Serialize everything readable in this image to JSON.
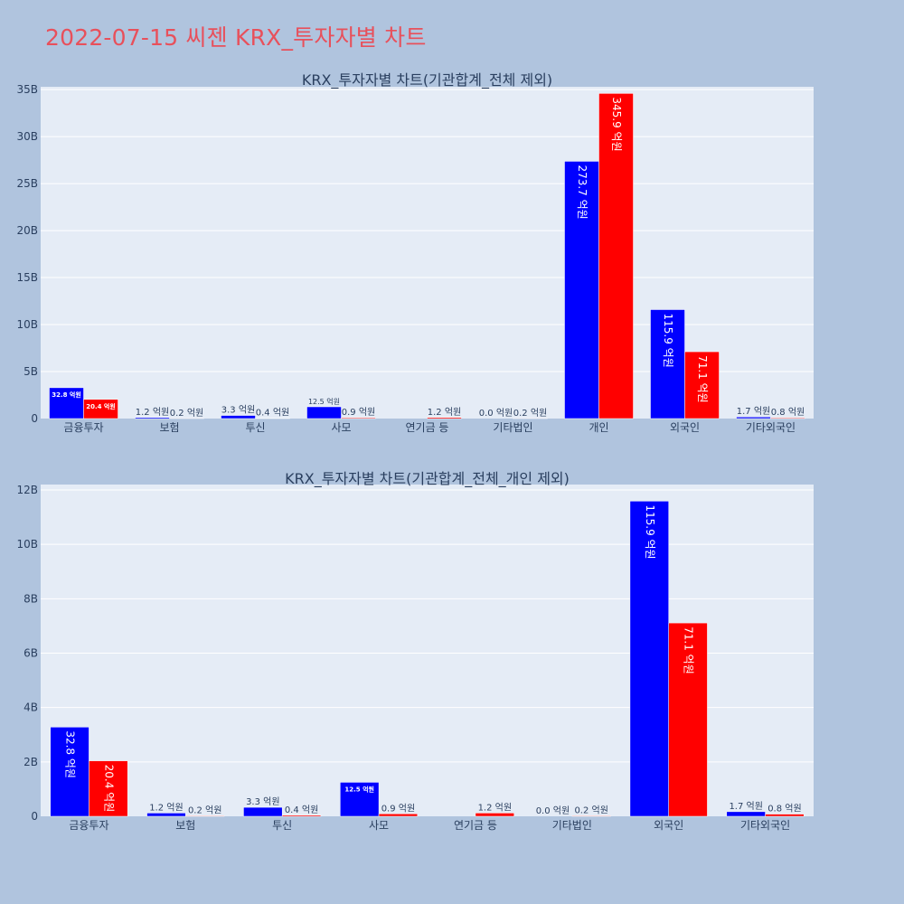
{
  "page": {
    "title": "2022-07-15 씨젠 KRX_투자자별 차트"
  },
  "colors": {
    "background": "#b0c4de",
    "plot_bg": "#e5ecf6",
    "buy": "#0000ff",
    "sell": "#ff0000",
    "title": "#e8505b",
    "text": "#2a3f5f"
  },
  "chart_data": [
    {
      "type": "bar",
      "title": "KRX_투자자별 차트(기관합계_전체 제외)",
      "categories": [
        "금융투자",
        "보험",
        "투신",
        "사모",
        "연기금 등",
        "기타법인",
        "개인",
        "외국인",
        "기타외국인"
      ],
      "series": [
        {
          "color": "#0000ff",
          "values": [
            3280000000,
            120000000,
            330000000,
            1250000000,
            0,
            0,
            27370000000,
            11590000000,
            170000000
          ],
          "labels": [
            "32.8 억원",
            "1.2 억원",
            "3.3 억원",
            "12.5 억원",
            "",
            "0.0 억원",
            "273.7 억원",
            "115.9 억원",
            "1.7 억원"
          ]
        },
        {
          "color": "#ff0000",
          "values": [
            2040000000,
            20000000,
            40000000,
            90000000,
            120000000,
            20000000,
            34590000000,
            7110000000,
            80000000
          ],
          "labels": [
            "20.4 억원",
            "0.2 억원",
            "0.4 억원",
            "0.9 억원",
            "1.2 억원",
            "0.2 억원",
            "345.9 억원",
            "71.1 억원",
            "0.8 억원"
          ]
        }
      ],
      "yticks": [
        0,
        5000000000,
        10000000000,
        15000000000,
        20000000000,
        25000000000,
        30000000000,
        35000000000
      ],
      "ytick_labels": [
        "0",
        "5B",
        "10B",
        "15B",
        "20B",
        "25B",
        "30B",
        "35B"
      ],
      "ylim": [
        0,
        35300000000
      ],
      "grid": true
    },
    {
      "type": "bar",
      "title": "KRX_투자자별 차트(기관합계_전체_개인 제외)",
      "categories": [
        "금융투자",
        "보험",
        "투신",
        "사모",
        "연기금 등",
        "기타법인",
        "외국인",
        "기타외국인"
      ],
      "series": [
        {
          "color": "#0000ff",
          "values": [
            3280000000,
            120000000,
            330000000,
            1250000000,
            0,
            0,
            11590000000,
            170000000
          ],
          "labels": [
            "32.8 억원",
            "1.2 억원",
            "3.3 억원",
            "12.5 억원",
            "",
            "0.0 억원",
            "115.9 억원",
            "1.7 억원"
          ]
        },
        {
          "color": "#ff0000",
          "values": [
            2040000000,
            20000000,
            40000000,
            90000000,
            120000000,
            20000000,
            7110000000,
            80000000
          ],
          "labels": [
            "20.4 억원",
            "0.2 억원",
            "0.4 억원",
            "0.9 억원",
            "1.2 억원",
            "0.2 억원",
            "71.1 억원",
            "0.8 억원"
          ]
        }
      ],
      "yticks": [
        0,
        2000000000,
        4000000000,
        6000000000,
        8000000000,
        10000000000,
        12000000000
      ],
      "ytick_labels": [
        "0",
        "2B",
        "4B",
        "6B",
        "8B",
        "10B",
        "12B"
      ],
      "ylim": [
        0,
        12200000000
      ],
      "grid": true
    }
  ]
}
